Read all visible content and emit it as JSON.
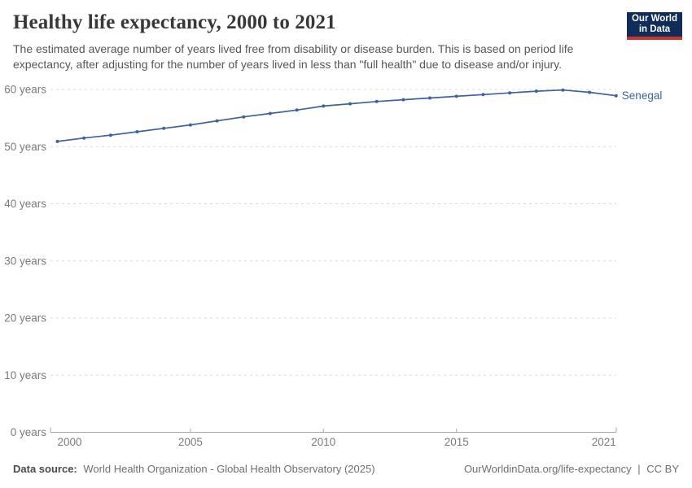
{
  "header": {
    "title": "Healthy life expectancy, 2000 to 2021",
    "subtitle": "The estimated average number of years lived free from disability or disease burden. This is based on period life expectancy, after adjusting for the number of years lived in less than \"full health\" due to disease and/or injury.",
    "logo": {
      "line1": "Our World",
      "line2": "in Data"
    }
  },
  "chart_data": {
    "type": "line",
    "title": "Healthy life expectancy, 2000 to 2021",
    "x": [
      2000,
      2001,
      2002,
      2003,
      2004,
      2005,
      2006,
      2007,
      2008,
      2009,
      2010,
      2011,
      2012,
      2013,
      2014,
      2015,
      2016,
      2017,
      2018,
      2019,
      2020,
      2021
    ],
    "series": [
      {
        "name": "Senegal",
        "color": "#3d6399",
        "values": [
          50.9,
          51.5,
          52.0,
          52.6,
          53.2,
          53.8,
          54.5,
          55.2,
          55.8,
          56.4,
          57.1,
          57.5,
          57.9,
          58.2,
          58.5,
          58.8,
          59.1,
          59.4,
          59.7,
          59.9,
          59.5,
          58.9
        ]
      }
    ],
    "xlabel": "",
    "ylabel": "",
    "xlim": [
      2000,
      2021
    ],
    "ylim": [
      0,
      60
    ],
    "x_ticks": [
      2000,
      2005,
      2010,
      2015,
      2021
    ],
    "y_ticks": [
      0,
      10,
      20,
      30,
      40,
      50,
      60
    ],
    "y_tick_suffix": " years",
    "grid": "horizontal-dashed",
    "legend_position": "end-of-line-label",
    "entity_label": "Senegal"
  },
  "footer": {
    "datasource_label": "Data source:",
    "datasource": "World Health Organization - Global Health Observatory (2025)",
    "link": "OurWorldinData.org/life-expectancy",
    "separator": "|",
    "license": "CC BY"
  },
  "colors": {
    "line": "#3d6399",
    "gridline": "#d9d9d9",
    "axis": "#a6a6a6",
    "tick_label": "#7a7a7a",
    "logo_bg": "#102d59",
    "logo_stripe": "#c9342c"
  }
}
